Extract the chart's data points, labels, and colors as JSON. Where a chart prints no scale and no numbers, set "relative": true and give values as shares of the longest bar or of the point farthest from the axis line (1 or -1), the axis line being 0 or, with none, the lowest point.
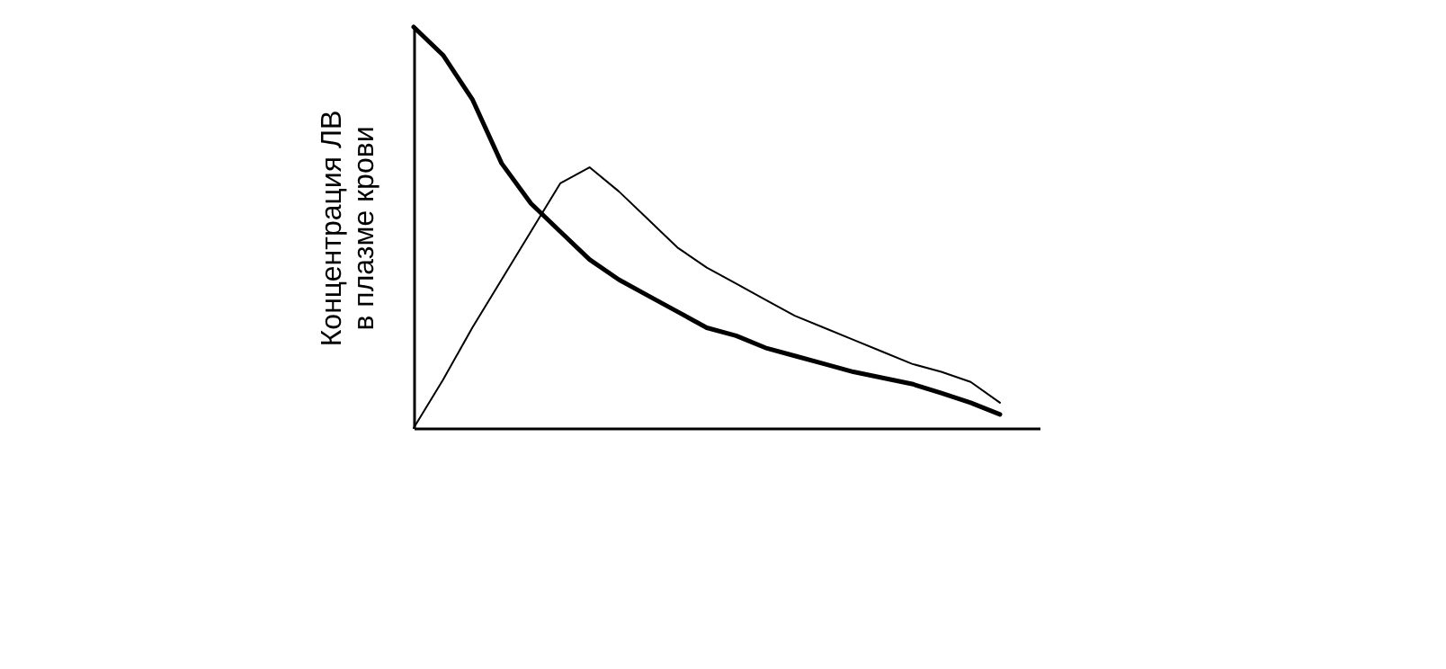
{
  "chart_data": {
    "type": "line",
    "relative": true,
    "ylabel": "Концентрация ЛВ\nв плазме крови",
    "categories": [
      null,
      null,
      null,
      null,
      null,
      null,
      null,
      null,
      null,
      null,
      null,
      null,
      null,
      null,
      null,
      null,
      null,
      null,
      null,
      null,
      null
    ],
    "series": [
      {
        "color": "#000000",
        "values": [
          1.0,
          0.93,
          0.82,
          0.66,
          0.56,
          0.49,
          0.42,
          0.37,
          0.33,
          0.29,
          0.25,
          0.23,
          0.2,
          0.18,
          0.16,
          0.14,
          0.125,
          0.11,
          0.087,
          0.063,
          0.034
        ]
      },
      {
        "color": "#000000",
        "values": [
          0,
          0.12,
          0.25,
          0.37,
          0.49,
          0.61,
          0.65,
          0.59,
          0.52,
          0.45,
          0.4,
          0.36,
          0.32,
          0.28,
          0.25,
          0.22,
          0.19,
          0.16,
          0.14,
          0.115,
          0.063
        ]
      }
    ],
    "marker": "none"
  }
}
